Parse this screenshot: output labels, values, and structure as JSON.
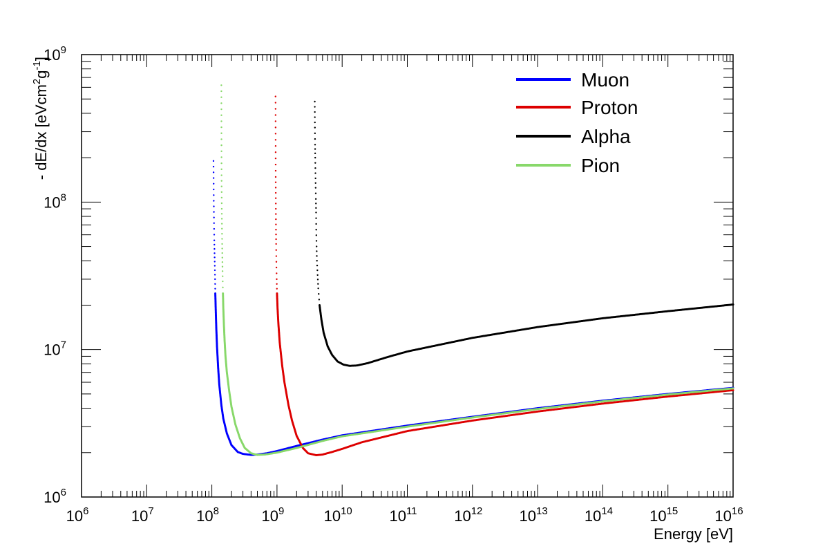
{
  "chart_data": {
    "type": "scatter",
    "title": "",
    "xlabel": "Energy [eV]",
    "ylabel": "- dE/dx [eVcm",
    "ylabel_sup1": "2",
    "ylabel_mid": "g",
    "ylabel_sup2": "-1",
    "ylabel_end": "]",
    "x_scale": "log",
    "y_scale": "log",
    "xlim": [
      1000000.0,
      1e+16
    ],
    "ylim": [
      1000000.0,
      1000000000.0
    ],
    "grid": false,
    "legend_position": "top-right",
    "x_ticks": [
      {
        "base": "10",
        "exp": "6"
      },
      {
        "base": "10",
        "exp": "7"
      },
      {
        "base": "10",
        "exp": "8"
      },
      {
        "base": "10",
        "exp": "9"
      },
      {
        "base": "10",
        "exp": "10"
      },
      {
        "base": "10",
        "exp": "11"
      },
      {
        "base": "10",
        "exp": "12"
      },
      {
        "base": "10",
        "exp": "13"
      },
      {
        "base": "10",
        "exp": "14"
      },
      {
        "base": "10",
        "exp": "15"
      },
      {
        "base": "10",
        "exp": "16"
      }
    ],
    "y_ticks": [
      {
        "base": "10",
        "exp": "6"
      },
      {
        "base": "10",
        "exp": "7"
      },
      {
        "base": "10",
        "exp": "8"
      },
      {
        "base": "10",
        "exp": "9"
      }
    ],
    "series": [
      {
        "name": "Muon",
        "color": "#0000ff",
        "points": [
          [
            106000000.0,
            190000000.0
          ],
          [
            107000000.0,
            102000000.0
          ],
          [
            108000000.0,
            72000000.0
          ],
          [
            109000000.0,
            55000000.0
          ],
          [
            110000000.0,
            45000000.0
          ],
          [
            111000000.0,
            37000000.0
          ],
          [
            112000000.0,
            30000000.0
          ],
          [
            113000000.0,
            24000000.0
          ],
          [
            115000000.0,
            18000000.0
          ],
          [
            117000000.0,
            14000000.0
          ],
          [
            120000000.0,
            10500000.0
          ],
          [
            125000000.0,
            7500000.0
          ],
          [
            130000000.0,
            5800000.0
          ],
          [
            140000000.0,
            4200000.0
          ],
          [
            150000000.0,
            3400000.0
          ],
          [
            170000000.0,
            2700000.0
          ],
          [
            200000000.0,
            2250000.0
          ],
          [
            250000000.0,
            2020000.0
          ],
          [
            300000000.0,
            1960000.0
          ],
          [
            400000000.0,
            1930000.0
          ],
          [
            500000000.0,
            1940000.0
          ],
          [
            700000000.0,
            1980000.0
          ],
          [
            1000000000.0,
            2050000.0
          ],
          [
            2000000000.0,
            2220000.0
          ],
          [
            5000000000.0,
            2450000.0
          ],
          [
            10000000000.0,
            2620000.0
          ],
          [
            100000000000.0,
            3050000.0
          ],
          [
            1000000000000.0,
            3500000.0
          ],
          [
            10000000000000.0,
            4000000.0
          ],
          [
            100000000000000.0,
            4500000.0
          ],
          [
            1000000000000000.0,
            5000000.0
          ],
          [
            1e+16,
            5500000.0
          ]
        ]
      },
      {
        "name": "Proton",
        "color": "#dd0000",
        "points": [
          [
            950000000.0,
            520000000.0
          ],
          [
            955000000.0,
            148000000.0
          ],
          [
            960000000.0,
            90000000.0
          ],
          [
            965000000.0,
            65000000.0
          ],
          [
            970000000.0,
            52000000.0
          ],
          [
            975000000.0,
            43000000.0
          ],
          [
            980000000.0,
            36000000.0
          ],
          [
            990000000.0,
            30000000.0
          ],
          [
            1000000000.0,
            24000000.0
          ],
          [
            1020000000.0,
            19000000.0
          ],
          [
            1050000000.0,
            15000000.0
          ],
          [
            1100000000.0,
            11200000.0
          ],
          [
            1200000000.0,
            7800000.0
          ],
          [
            1300000000.0,
            6000000.0
          ],
          [
            1500000000.0,
            4200000.0
          ],
          [
            1700000000.0,
            3300000.0
          ],
          [
            2000000000.0,
            2600000.0
          ],
          [
            2500000000.0,
            2150000.0
          ],
          [
            3000000000.0,
            1980000.0
          ],
          [
            4000000000.0,
            1920000.0
          ],
          [
            5000000000.0,
            1940000.0
          ],
          [
            7000000000.0,
            2020000.0
          ],
          [
            10000000000.0,
            2120000.0
          ],
          [
            20000000000.0,
            2350000.0
          ],
          [
            100000000000.0,
            2800000.0
          ],
          [
            1000000000000.0,
            3300000.0
          ],
          [
            10000000000000.0,
            3800000.0
          ],
          [
            100000000000000.0,
            4300000.0
          ],
          [
            1000000000000000.0,
            4800000.0
          ],
          [
            1e+16,
            5300000.0
          ]
        ]
      },
      {
        "name": "Alpha",
        "color": "#000000",
        "points": [
          [
            3800000000.0,
            480000000.0
          ],
          [
            3820000000.0,
            320000000.0
          ],
          [
            3840000000.0,
            245000000.0
          ],
          [
            3860000000.0,
            200000000.0
          ],
          [
            3880000000.0,
            170000000.0
          ],
          [
            3900000000.0,
            145000000.0
          ],
          [
            3920000000.0,
            125000000.0
          ],
          [
            3950000000.0,
            105000000.0
          ],
          [
            3980000000.0,
            85000000.0
          ],
          [
            4000000000.0,
            65000000.0
          ],
          [
            4050000000.0,
            50000000.0
          ],
          [
            4100000000.0,
            40000000.0
          ],
          [
            4200000000.0,
            32000000.0
          ],
          [
            4300000000.0,
            26000000.0
          ],
          [
            4500000000.0,
            20000000.0
          ],
          [
            4800000000.0,
            16000000.0
          ],
          [
            5200000000.0,
            13000000.0
          ],
          [
            6000000000.0,
            10500000.0
          ],
          [
            7000000000.0,
            9200000.0
          ],
          [
            8500000000.0,
            8300000.0
          ],
          [
            10500000000.0,
            7900000.0
          ],
          [
            13000000000.0,
            7750000.0
          ],
          [
            17000000000.0,
            7800000.0
          ],
          [
            25000000000.0,
            8100000.0
          ],
          [
            50000000000.0,
            8900000.0
          ],
          [
            100000000000.0,
            9700000.0
          ],
          [
            1000000000000.0,
            12000000.0
          ],
          [
            10000000000000.0,
            14200000.0
          ],
          [
            100000000000000.0,
            16300000.0
          ],
          [
            1000000000000000.0,
            18200000.0
          ],
          [
            1e+16,
            20200000.0
          ]
        ]
      },
      {
        "name": "Pion",
        "color": "#88d86a",
        "points": [
          [
            140000000.0,
            620000000.0
          ],
          [
            141000000.0,
            152000000.0
          ],
          [
            142000000.0,
            90000000.0
          ],
          [
            143000000.0,
            66000000.0
          ],
          [
            144000000.0,
            52000000.0
          ],
          [
            145000000.0,
            42000000.0
          ],
          [
            146000000.0,
            34000000.0
          ],
          [
            147000000.0,
            29000000.0
          ],
          [
            148000000.0,
            24000000.0
          ],
          [
            150000000.0,
            19000000.0
          ],
          [
            153000000.0,
            15000000.0
          ],
          [
            157000000.0,
            11500000.0
          ],
          [
            162000000.0,
            9000000.0
          ],
          [
            170000000.0,
            7000000.0
          ],
          [
            185000000.0,
            5200000.0
          ],
          [
            200000000.0,
            4100000.0
          ],
          [
            230000000.0,
            3100000.0
          ],
          [
            270000000.0,
            2500000.0
          ],
          [
            320000000.0,
            2150000.0
          ],
          [
            400000000.0,
            1980000.0
          ],
          [
            500000000.0,
            1930000.0
          ],
          [
            650000000.0,
            1940000.0
          ],
          [
            1000000000.0,
            2000000.0
          ],
          [
            2000000000.0,
            2150000.0
          ],
          [
            5000000000.0,
            2400000.0
          ],
          [
            10000000000.0,
            2580000.0
          ],
          [
            100000000000.0,
            3000000.0
          ],
          [
            1000000000000.0,
            3460000.0
          ],
          [
            10000000000000.0,
            3950000.0
          ],
          [
            100000000000000.0,
            4450000.0
          ],
          [
            1000000000000000.0,
            4950000.0
          ],
          [
            1e+16,
            5450000.0
          ]
        ]
      }
    ]
  }
}
